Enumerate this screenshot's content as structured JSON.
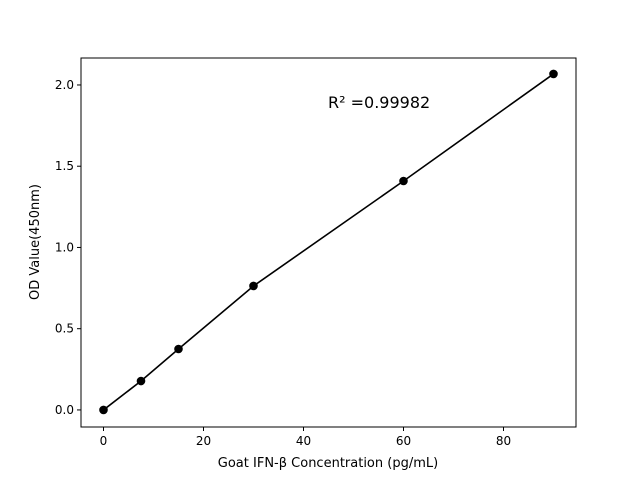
{
  "chart_data": {
    "type": "scatter",
    "title": "",
    "xlabel": "Goat IFN-β Concentration (pg/mL)",
    "ylabel": "OD Value(450nm)",
    "xlim": [
      -4.5,
      94.5
    ],
    "ylim": [
      -0.105,
      2.166
    ],
    "xticks": [
      0,
      20,
      40,
      60,
      80
    ],
    "xtick_labels": [
      "0",
      "20",
      "40",
      "60",
      "80"
    ],
    "yticks": [
      0.0,
      0.5,
      1.0,
      1.5,
      2.0
    ],
    "ytick_labels": [
      "0.0",
      "0.5",
      "1.0",
      "1.5",
      "2.0"
    ],
    "grid": false,
    "series": [
      {
        "x": [
          0,
          7.5,
          15,
          30,
          60,
          90
        ],
        "y": [
          0.0,
          0.178,
          0.375,
          0.763,
          1.409,
          2.068
        ],
        "marker": "circle",
        "line": true,
        "color": "#000000"
      }
    ],
    "annotation": "R² =0.99982"
  }
}
